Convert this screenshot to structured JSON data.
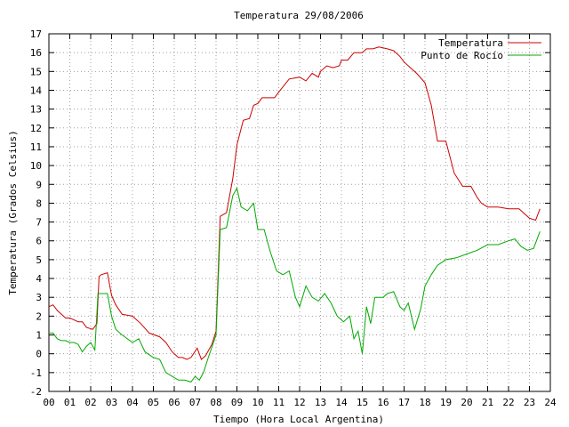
{
  "chart_data": {
    "type": "line",
    "title": "Temperatura 29/08/2006",
    "xlabel": "Tiempo (Hora Local Argentina)",
    "ylabel": "Temperatura (Grados Celsius)",
    "xlim": [
      0,
      24
    ],
    "ylim": [
      -2,
      17
    ],
    "grid": true,
    "legend_position": "top-right",
    "x_tick_labels": [
      "00",
      "01",
      "02",
      "03",
      "04",
      "05",
      "06",
      "07",
      "08",
      "09",
      "10",
      "11",
      "12",
      "13",
      "14",
      "15",
      "16",
      "17",
      "18",
      "19",
      "20",
      "21",
      "22",
      "23",
      "24"
    ],
    "y_tick_labels": [
      "-2",
      "-1",
      "0",
      "1",
      "2",
      "3",
      "4",
      "5",
      "6",
      "7",
      "8",
      "9",
      "10",
      "11",
      "12",
      "13",
      "14",
      "15",
      "16",
      "17"
    ],
    "series": [
      {
        "name": "Temperatura",
        "color": "#cc0000",
        "x": [
          0.0,
          0.2,
          0.4,
          0.6,
          0.8,
          1.0,
          1.2,
          1.4,
          1.6,
          1.8,
          2.1,
          2.3,
          2.4,
          2.5,
          2.8,
          3.0,
          3.2,
          3.5,
          4.0,
          4.4,
          4.8,
          5.3,
          5.6,
          5.9,
          6.2,
          6.4,
          6.6,
          6.8,
          7.1,
          7.3,
          7.5,
          7.8,
          8.0,
          8.2,
          8.5,
          8.8,
          9.0,
          9.3,
          9.6,
          9.8,
          10.0,
          10.2,
          10.5,
          10.8,
          11.0,
          11.5,
          12.0,
          12.3,
          12.6,
          12.9,
          13.0,
          13.3,
          13.6,
          13.9,
          14.0,
          14.3,
          14.6,
          15.0,
          15.2,
          15.5,
          15.8,
          16.2,
          16.5,
          16.8,
          17.0,
          17.3,
          17.6,
          18.0,
          18.3,
          18.6,
          19.0,
          19.4,
          19.8,
          20.2,
          20.5,
          20.7,
          21.0,
          21.5,
          22.0,
          22.5,
          23.0,
          23.3,
          23.5
        ],
        "y": [
          2.5,
          2.6,
          2.3,
          2.1,
          1.9,
          1.9,
          1.8,
          1.7,
          1.7,
          1.4,
          1.3,
          1.6,
          4.1,
          4.2,
          4.3,
          3.1,
          2.6,
          2.1,
          2.0,
          1.6,
          1.1,
          0.9,
          0.6,
          0.1,
          -0.2,
          -0.2,
          -0.3,
          -0.2,
          0.3,
          -0.3,
          -0.1,
          0.5,
          1.2,
          7.3,
          7.5,
          9.3,
          11.1,
          12.4,
          12.5,
          13.2,
          13.3,
          13.6,
          13.6,
          13.6,
          13.9,
          14.6,
          14.7,
          14.5,
          14.9,
          14.7,
          15.0,
          15.3,
          15.2,
          15.3,
          15.6,
          15.6,
          16.0,
          16.0,
          16.2,
          16.2,
          16.3,
          16.2,
          16.1,
          15.8,
          15.5,
          15.2,
          14.9,
          14.4,
          13.2,
          11.3,
          11.3,
          9.6,
          8.9,
          8.9,
          8.3,
          8.0,
          7.8,
          7.8,
          7.7,
          7.7,
          7.2,
          7.1,
          7.7
        ]
      },
      {
        "name": "Punto de Rocío",
        "color": "#00aa00",
        "x": [
          0.0,
          0.2,
          0.4,
          0.6,
          0.8,
          1.0,
          1.2,
          1.4,
          1.6,
          1.8,
          2.0,
          2.2,
          2.35,
          2.5,
          2.8,
          3.0,
          3.2,
          3.5,
          4.0,
          4.3,
          4.6,
          5.0,
          5.3,
          5.6,
          5.9,
          6.2,
          6.5,
          6.8,
          7.0,
          7.2,
          7.4,
          7.6,
          8.0,
          8.2,
          8.5,
          8.8,
          9.0,
          9.2,
          9.5,
          9.8,
          10.0,
          10.3,
          10.6,
          10.9,
          11.2,
          11.5,
          11.8,
          12.0,
          12.3,
          12.6,
          12.9,
          13.2,
          13.5,
          13.8,
          14.1,
          14.4,
          14.6,
          14.8,
          15.0,
          15.2,
          15.4,
          15.6,
          15.8,
          16.0,
          16.2,
          16.5,
          16.8,
          17.0,
          17.2,
          17.5,
          17.8,
          18.0,
          18.3,
          18.6,
          19.0,
          19.5,
          20.0,
          20.5,
          21.0,
          21.5,
          22.0,
          22.3,
          22.6,
          22.9,
          23.2,
          23.5
        ],
        "y": [
          1.1,
          1.1,
          0.8,
          0.7,
          0.7,
          0.6,
          0.6,
          0.5,
          0.1,
          0.4,
          0.6,
          0.2,
          3.2,
          3.2,
          3.2,
          2.0,
          1.3,
          1.0,
          0.6,
          0.8,
          0.1,
          -0.2,
          -0.3,
          -1.0,
          -1.2,
          -1.4,
          -1.4,
          -1.5,
          -1.2,
          -1.4,
          -1.0,
          -0.3,
          1.0,
          6.6,
          6.7,
          8.4,
          8.8,
          7.8,
          7.6,
          8.0,
          6.6,
          6.6,
          5.4,
          4.4,
          4.2,
          4.4,
          3.0,
          2.5,
          3.6,
          3.0,
          2.8,
          3.2,
          2.7,
          2.0,
          1.7,
          2.0,
          0.8,
          1.2,
          0.0,
          2.5,
          1.6,
          3.0,
          3.0,
          3.0,
          3.2,
          3.3,
          2.5,
          2.3,
          2.7,
          1.3,
          2.4,
          3.6,
          4.2,
          4.7,
          5.0,
          5.1,
          5.3,
          5.5,
          5.8,
          5.8,
          6.0,
          6.1,
          5.7,
          5.5,
          5.6,
          6.5
        ]
      }
    ]
  }
}
